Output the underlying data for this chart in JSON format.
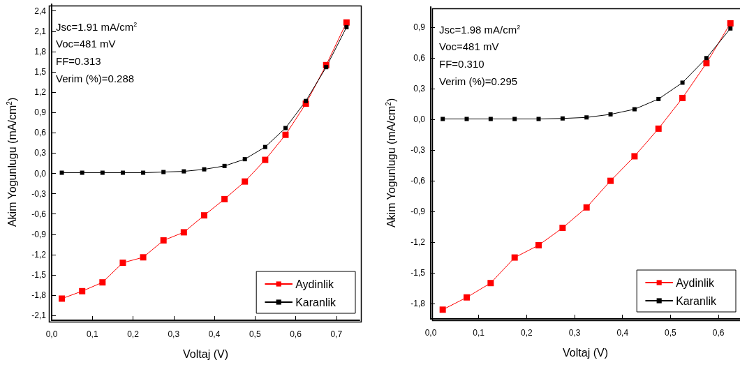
{
  "chart_data": [
    {
      "type": "line",
      "xlabel": "Voltaj (V)",
      "ylabel": "Akim Yogunlugu (mA/cm$^{2}$)",
      "annotations": [
        "Jsc=1.91 mA/cm$^{2}$",
        "Voc=481 mV",
        "FF=0.313",
        "Verim (%)=0.288"
      ],
      "x": [
        0.025,
        0.075,
        0.125,
        0.175,
        0.225,
        0.275,
        0.325,
        0.375,
        0.425,
        0.475,
        0.525,
        0.575,
        0.625,
        0.675,
        0.725
      ],
      "series": [
        {
          "name": "Aydinlik",
          "color": "#ff0000",
          "values": [
            -1.85,
            -1.74,
            -1.61,
            -1.32,
            -1.24,
            -0.99,
            -0.87,
            -0.62,
            -0.38,
            -0.12,
            0.2,
            0.57,
            1.03,
            1.6,
            2.23
          ]
        },
        {
          "name": "Karanlik",
          "color": "#000000",
          "values": [
            0.01,
            0.01,
            0.01,
            0.01,
            0.01,
            0.02,
            0.03,
            0.06,
            0.11,
            0.21,
            0.39,
            0.67,
            1.07,
            1.57,
            2.16
          ]
        }
      ],
      "xlim": [
        0,
        0.757
      ],
      "ylim": [
        -2.17,
        2.5
      ],
      "xticks": [
        {
          "value": 0,
          "label": "0,0"
        },
        {
          "value": 0.1,
          "label": "0,1"
        },
        {
          "value": 0.2,
          "label": "0,2"
        },
        {
          "value": 0.3,
          "label": "0,3"
        },
        {
          "value": 0.4,
          "label": "0,4"
        },
        {
          "value": 0.5,
          "label": "0,5"
        },
        {
          "value": 0.6,
          "label": "0,6"
        },
        {
          "value": 0.7,
          "label": "0,7"
        }
      ],
      "yticks": [
        {
          "value": -2.1,
          "label": "-2,1"
        },
        {
          "value": -1.8,
          "label": "-1,8"
        },
        {
          "value": -1.5,
          "label": "-1,5"
        },
        {
          "value": -1.2,
          "label": "-1,2"
        },
        {
          "value": -0.9,
          "label": "-0,9"
        },
        {
          "value": -0.6,
          "label": "-0,6"
        },
        {
          "value": -0.3,
          "label": "-0,3"
        },
        {
          "value": 0,
          "label": "0,0"
        },
        {
          "value": 0.3,
          "label": "0,3"
        },
        {
          "value": 0.6,
          "label": "0,6"
        },
        {
          "value": 0.9,
          "label": "0,9"
        },
        {
          "value": 1.2,
          "label": "1,2"
        },
        {
          "value": 1.5,
          "label": "1,5"
        },
        {
          "value": 1.8,
          "label": "1,8"
        },
        {
          "value": 2.1,
          "label": "2,1"
        },
        {
          "value": 2.4,
          "label": "2,4"
        }
      ],
      "grid": false,
      "legend": "bottom right",
      "marker": "square",
      "line_style": "solid"
    },
    {
      "type": "line",
      "xlabel": "Voltaj (V)",
      "ylabel": "Akim Yogunlugu (mA/cm$^{2}$)",
      "annotations": [
        "Jsc=1.98 mA/cm$^{2}$",
        "Voc=481 mV",
        "FF=0.310",
        "Verim (%)=0.295"
      ],
      "x": [
        0.025,
        0.075,
        0.125,
        0.175,
        0.225,
        0.275,
        0.325,
        0.375,
        0.425,
        0.475,
        0.525,
        0.575,
        0.625
      ],
      "series": [
        {
          "name": "Aydinlik",
          "color": "#ff0000",
          "values": [
            -1.86,
            -1.74,
            -1.6,
            -1.35,
            -1.23,
            -1.06,
            -0.86,
            -0.6,
            -0.36,
            -0.09,
            0.21,
            0.55,
            0.94
          ]
        },
        {
          "name": "Karanlik",
          "color": "#000000",
          "values": [
            0.005,
            0.005,
            0.005,
            0.005,
            0.005,
            0.01,
            0.02,
            0.05,
            0.1,
            0.2,
            0.36,
            0.6,
            0.89
          ]
        }
      ],
      "xlim": [
        0,
        0.645
      ],
      "ylim": [
        -1.95,
        1.1
      ],
      "xticks": [
        {
          "value": 0,
          "label": "0,0"
        },
        {
          "value": 0.1,
          "label": "0,1"
        },
        {
          "value": 0.2,
          "label": "0,2"
        },
        {
          "value": 0.3,
          "label": "0,3"
        },
        {
          "value": 0.4,
          "label": "0,4"
        },
        {
          "value": 0.5,
          "label": "0,5"
        },
        {
          "value": 0.6,
          "label": "0,6"
        }
      ],
      "yticks": [
        {
          "value": -1.8,
          "label": "-1,8"
        },
        {
          "value": -1.5,
          "label": "-1,5"
        },
        {
          "value": -1.2,
          "label": "-1,2"
        },
        {
          "value": -0.9,
          "label": "-0,9"
        },
        {
          "value": -0.6,
          "label": "-0,6"
        },
        {
          "value": -0.3,
          "label": "-0,3"
        },
        {
          "value": 0,
          "label": "0,0"
        },
        {
          "value": 0.3,
          "label": "0,3"
        },
        {
          "value": 0.6,
          "label": "0,6"
        },
        {
          "value": 0.9,
          "label": "0,9"
        }
      ],
      "grid": false,
      "legend": "bottom right",
      "marker": "square",
      "line_style": "solid"
    }
  ]
}
